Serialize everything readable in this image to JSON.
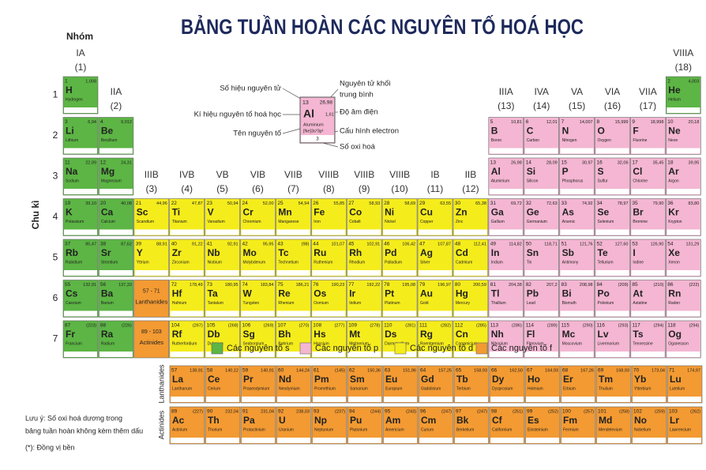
{
  "title": "BẢNG TUẦN HOÀN CÁC NGUYÊN TỐ HOÁ HỌC",
  "group_heading": "Nhóm",
  "period_heading": "Chu kì",
  "groups": [
    [
      "IA",
      "(1)"
    ],
    [
      "IIA",
      "(2)"
    ],
    [
      "IIIB",
      "(3)"
    ],
    [
      "IVB",
      "(4)"
    ],
    [
      "VB",
      "(5)"
    ],
    [
      "VIB",
      "(6)"
    ],
    [
      "VIIB",
      "(7)"
    ],
    [
      "VIIIB",
      "(8)"
    ],
    [
      "VIIIB",
      "(9)"
    ],
    [
      "VIIIB",
      "(10)"
    ],
    [
      "IB",
      "(11)"
    ],
    [
      "IIB",
      "(12)"
    ],
    [
      "IIIA",
      "(13)"
    ],
    [
      "IVA",
      "(14)"
    ],
    [
      "VA",
      "(15)"
    ],
    [
      "VIA",
      "(16)"
    ],
    [
      "VIIA",
      "(17)"
    ],
    [
      "VIIIA",
      "(18)"
    ]
  ],
  "periods": [
    "1",
    "2",
    "3",
    "4",
    "5",
    "6",
    "7"
  ],
  "placeholders": [
    {
      "range": "57 - 71",
      "label": "Lanthanides"
    },
    {
      "range": "89 - 103",
      "label": "Actinides"
    }
  ],
  "key": {
    "atomic_number_label": "Số hiệu nguyên tử",
    "symbol_label": "Kí hiệu nguyên tố hoá học",
    "name_label": "Tên nguyên tố",
    "mass_label": [
      "Nguyên tử khối",
      "trung bình"
    ],
    "electronegativity_label": "Độ âm điện",
    "configuration_label": "Cấu hình electron",
    "oxidation_label": "Số oxi hoá",
    "number": "13",
    "mass": "26,98",
    "symbol": "Al",
    "electronegativity": "1,61",
    "name": "Aluminium",
    "configuration": "[Ne]3s²3p¹",
    "oxidation": "3"
  },
  "legend": [
    "Các nguyên tố s",
    "Các nguyên tố p",
    "Các nguyên tố d",
    "Các nguyên tố f"
  ],
  "notes": [
    "Lưu ý: Số oxi hoá dương trong",
    "bảng tuần hoàn không kèm thêm dấu",
    "(*): Đồng vị bền"
  ],
  "elements": [
    [
      1,
      "H",
      "Hydrogen",
      "1,008"
    ],
    [
      2,
      "He",
      "Helium",
      "4,003"
    ],
    [
      3,
      "Li",
      "Lithium",
      "6,94"
    ],
    [
      4,
      "Be",
      "Beryllium",
      "9,012"
    ],
    [
      5,
      "B",
      "Boron",
      "10,81"
    ],
    [
      6,
      "C",
      "Carbon",
      "12,01"
    ],
    [
      7,
      "N",
      "Nitrogen",
      "14,007"
    ],
    [
      8,
      "O",
      "Oxygen",
      "15,999"
    ],
    [
      9,
      "F",
      "Fluorine",
      "18,998"
    ],
    [
      10,
      "Ne",
      "Neon",
      "20,18"
    ],
    [
      11,
      "Na",
      "Sodium",
      "22,99"
    ],
    [
      12,
      "Mg",
      "Magnesium",
      "24,31"
    ],
    [
      13,
      "Al",
      "Aluminium",
      "26,98"
    ],
    [
      14,
      "Si",
      "Silicon",
      "28,09"
    ],
    [
      15,
      "P",
      "Phosphorus",
      "30,97"
    ],
    [
      16,
      "S",
      "Sulfur",
      "32,06"
    ],
    [
      17,
      "Cl",
      "Chlorine",
      "35,45"
    ],
    [
      18,
      "Ar",
      "Argon",
      "39,95"
    ],
    [
      19,
      "K",
      "Potassium",
      "39,10"
    ],
    [
      20,
      "Ca",
      "Calcium",
      "40,08"
    ],
    [
      21,
      "Sc",
      "Scandium",
      "44,96"
    ],
    [
      22,
      "Ti",
      "Titanium",
      "47,87"
    ],
    [
      23,
      "V",
      "Vanadium",
      "50,94"
    ],
    [
      24,
      "Cr",
      "Chromium",
      "52,00"
    ],
    [
      25,
      "Mn",
      "Manganese",
      "54,94"
    ],
    [
      26,
      "Fe",
      "Iron",
      "55,85"
    ],
    [
      27,
      "Co",
      "Cobalt",
      "58,93"
    ],
    [
      28,
      "Ni",
      "Nickel",
      "58,69"
    ],
    [
      29,
      "Cu",
      "Copper",
      "63,55"
    ],
    [
      30,
      "Zn",
      "Zinc",
      "65,38"
    ],
    [
      31,
      "Ga",
      "Gallium",
      "69,72"
    ],
    [
      32,
      "Ge",
      "Germanium",
      "72,63"
    ],
    [
      33,
      "As",
      "Arsenic",
      "74,92"
    ],
    [
      34,
      "Se",
      "Selenium",
      "78,97"
    ],
    [
      35,
      "Br",
      "Bromine",
      "79,90"
    ],
    [
      36,
      "Kr",
      "Krypton",
      "83,80"
    ],
    [
      37,
      "Rb",
      "Rubidium",
      "85,47"
    ],
    [
      38,
      "Sr",
      "Strontium",
      "87,62"
    ],
    [
      39,
      "Y",
      "Yttrium",
      "88,91"
    ],
    [
      40,
      "Zr",
      "Zirconium",
      "91,22"
    ],
    [
      41,
      "Nb",
      "Niobium",
      "92,91"
    ],
    [
      42,
      "Mo",
      "Molybdenum",
      "95,95"
    ],
    [
      43,
      "Tc",
      "Technetium",
      "(98)"
    ],
    [
      44,
      "Ru",
      "Ruthenium",
      "101,07"
    ],
    [
      45,
      "Rh",
      "Rhodium",
      "102,91"
    ],
    [
      46,
      "Pd",
      "Palladium",
      "106,42"
    ],
    [
      47,
      "Ag",
      "Silver",
      "107,87"
    ],
    [
      48,
      "Cd",
      "Cadmium",
      "112,41"
    ],
    [
      49,
      "In",
      "Indium",
      "114,82"
    ],
    [
      50,
      "Sn",
      "Tin",
      "118,71"
    ],
    [
      51,
      "Sb",
      "Antimony",
      "121,76"
    ],
    [
      52,
      "Te",
      "Tellurium",
      "127,60"
    ],
    [
      53,
      "I",
      "Iodine",
      "126,90"
    ],
    [
      54,
      "Xe",
      "Xenon",
      "131,29"
    ],
    [
      55,
      "Cs",
      "Caesium",
      "132,91"
    ],
    [
      56,
      "Ba",
      "Barium",
      "137,33"
    ],
    [
      57,
      "La",
      "Lanthanum",
      "138,91"
    ],
    [
      58,
      "Ce",
      "Cerium",
      "140,12"
    ],
    [
      59,
      "Pr",
      "Praseodymium",
      "140,91"
    ],
    [
      60,
      "Nd",
      "Neodymium",
      "144,24"
    ],
    [
      61,
      "Pm",
      "Promethium",
      "(145)"
    ],
    [
      62,
      "Sm",
      "Samarium",
      "150,36"
    ],
    [
      63,
      "Eu",
      "Europium",
      "151,96"
    ],
    [
      64,
      "Gd",
      "Gadolinium",
      "157,25"
    ],
    [
      65,
      "Tb",
      "Terbium",
      "158,93"
    ],
    [
      66,
      "Dy",
      "Dysprosium",
      "162,50"
    ],
    [
      67,
      "Ho",
      "Holmium",
      "164,93"
    ],
    [
      68,
      "Er",
      "Erbium",
      "167,26"
    ],
    [
      69,
      "Tm",
      "Thulium",
      "168,93"
    ],
    [
      70,
      "Yb",
      "Ytterbium",
      "173,04"
    ],
    [
      71,
      "Lu",
      "Lutetium",
      "174,97"
    ],
    [
      72,
      "Hf",
      "Hafnium",
      "178,49"
    ],
    [
      73,
      "Ta",
      "Tantalum",
      "180,95"
    ],
    [
      74,
      "W",
      "Tungsten",
      "183,84"
    ],
    [
      75,
      "Re",
      "Rhenium",
      "186,21"
    ],
    [
      76,
      "Os",
      "Osmium",
      "190,23"
    ],
    [
      77,
      "Ir",
      "Iridium",
      "192,22"
    ],
    [
      78,
      "Pt",
      "Platinum",
      "195,08"
    ],
    [
      79,
      "Au",
      "Gold",
      "196,97"
    ],
    [
      80,
      "Hg",
      "Mercury",
      "200,59"
    ],
    [
      81,
      "Tl",
      "Thallium",
      "204,38"
    ],
    [
      82,
      "Pb",
      "Lead",
      "207,2"
    ],
    [
      83,
      "Bi",
      "Bismuth",
      "208,98"
    ],
    [
      84,
      "Po",
      "Polonium",
      "(209)"
    ],
    [
      85,
      "At",
      "Astatine",
      "(210)"
    ],
    [
      86,
      "Rn",
      "Radon",
      "(222)"
    ],
    [
      87,
      "Fr",
      "Francium",
      "(223)"
    ],
    [
      88,
      "Ra",
      "Radium",
      "(226)"
    ],
    [
      89,
      "Ac",
      "Actinium",
      "(227)"
    ],
    [
      90,
      "Th",
      "Thorium",
      "232,04"
    ],
    [
      91,
      "Pa",
      "Protactinium",
      "231,04"
    ],
    [
      92,
      "U",
      "Uranium",
      "238,03"
    ],
    [
      93,
      "Np",
      "Neptunium",
      "(237)"
    ],
    [
      94,
      "Pu",
      "Plutonium",
      "(244)"
    ],
    [
      95,
      "Am",
      "Americium",
      "(243)"
    ],
    [
      96,
      "Cm",
      "Curium",
      "(247)"
    ],
    [
      97,
      "Bk",
      "Berkelium",
      "(247)"
    ],
    [
      98,
      "Cf",
      "Californium",
      "(251)"
    ],
    [
      99,
      "Es",
      "Einsteinium",
      "(252)"
    ],
    [
      100,
      "Fm",
      "Fermium",
      "(257)"
    ],
    [
      101,
      "Md",
      "Mendelevium",
      "(258)"
    ],
    [
      102,
      "No",
      "Nobelium",
      "(259)"
    ],
    [
      103,
      "Lr",
      "Lawrencium",
      "(262)"
    ],
    [
      104,
      "Rf",
      "Rutherfordium",
      "(267)"
    ],
    [
      105,
      "Db",
      "Dubnium",
      "(268)"
    ],
    [
      106,
      "Sg",
      "Seaborgium",
      "(269)"
    ],
    [
      107,
      "Bh",
      "Bohrium",
      "(270)"
    ],
    [
      108,
      "Hs",
      "Hassium",
      "(277)"
    ],
    [
      109,
      "Mt",
      "Meitnerium",
      "(278)"
    ],
    [
      110,
      "Ds",
      "Darmstadtium",
      "(281)"
    ],
    [
      111,
      "Rg",
      "Roentgenium",
      "(282)"
    ],
    [
      112,
      "Cn",
      "Copernicium",
      "(285)"
    ],
    [
      113,
      "Nh",
      "Nihonium",
      "(286)"
    ],
    [
      114,
      "Fl",
      "Flerovium",
      "(289)"
    ],
    [
      115,
      "Mc",
      "Moscovium",
      "(290)"
    ],
    [
      116,
      "Lv",
      "Livermorium",
      "(293)"
    ],
    [
      117,
      "Ts",
      "Tennessine",
      "(294)"
    ],
    [
      118,
      "Og",
      "Oganesson",
      "(294)"
    ]
  ]
}
